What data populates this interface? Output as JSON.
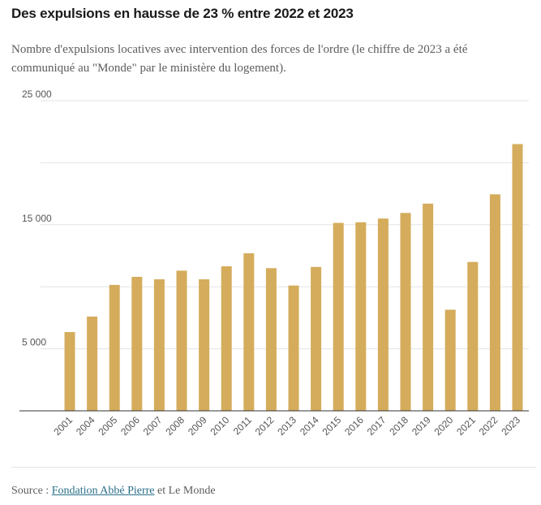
{
  "header": {
    "title": "Des expulsions en hausse de 23 % entre 2022 et 2023",
    "subtitle": "Nombre d'expulsions locatives avec intervention des forces de l'ordre (le chiffre de 2023 a été communiqué au \"Monde\" par le ministère du logement)."
  },
  "source": {
    "prefix": "Source : ",
    "link_text": "Fondation Abbé Pierre",
    "suffix": " et Le Monde"
  },
  "colors": {
    "bar": "#d4ac5c",
    "grid": "#e3e3e3",
    "axis": "#333333"
  },
  "chart_data": {
    "type": "bar",
    "categories": [
      "2001",
      "2004",
      "2005",
      "2006",
      "2007",
      "2008",
      "2009",
      "2010",
      "2011",
      "2012",
      "2013",
      "2014",
      "2015",
      "2016",
      "2017",
      "2018",
      "2019",
      "2020",
      "2021",
      "2022",
      "2023"
    ],
    "values": [
      6350,
      7600,
      10150,
      10800,
      10600,
      11300,
      10600,
      11650,
      12700,
      11500,
      10100,
      11600,
      15150,
      15200,
      15500,
      15950,
      16700,
      8150,
      12000,
      17450,
      21500
    ],
    "ylim": [
      0,
      25000
    ],
    "gridlines": [
      5000,
      10000,
      15000,
      20000,
      25000
    ],
    "ytick_labels": [
      {
        "value": 25000,
        "label": "25 000"
      },
      {
        "value": 15000,
        "label": "15 000"
      },
      {
        "value": 5000,
        "label": "5 000"
      }
    ],
    "grid": true,
    "legend": "none",
    "title": "Des expulsions en hausse de 23 % entre 2022 et 2023",
    "xlabel": "",
    "ylabel": ""
  }
}
